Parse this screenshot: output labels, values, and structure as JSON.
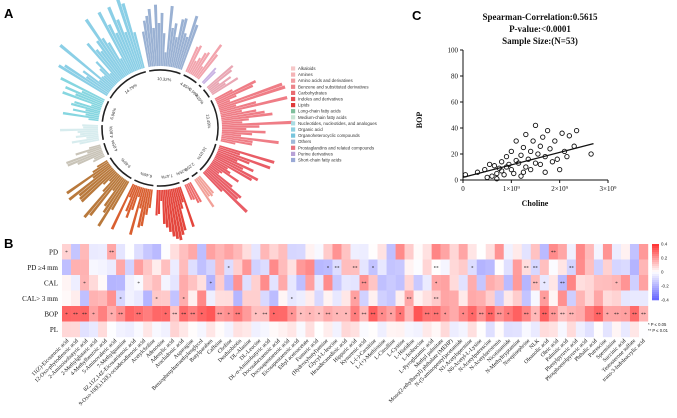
{
  "panels": {
    "a": "A",
    "b": "B",
    "c": "C"
  },
  "circular": {
    "segments": [
      {
        "pct": "4.85%",
        "color": "#f2a3ac"
      },
      {
        "pct": "0.99%",
        "color": "#c9b2e3"
      },
      {
        "pct": "3.10%",
        "color": "#e9a6b3"
      },
      {
        "pct": "13.49%",
        "color": "#ef7d86"
      },
      {
        "pct": "10.01%",
        "color": "#e95d66"
      },
      {
        "pct": "2.25%",
        "color": "#f2a098"
      },
      {
        "pct": "2.25%",
        "color": "#ee6b6b"
      },
      {
        "pct": "7.47%",
        "color": "#e4463d"
      },
      {
        "pct": "6.46%",
        "color": "#d95f30"
      },
      {
        "pct": "9.69%",
        "color": "#b9793c"
      },
      {
        "pct": "4.05%",
        "color": "#c9c4b8"
      },
      {
        "pct": "4.80%",
        "color": "#d7ecee"
      },
      {
        "pct": "6.96%",
        "color": "#86d6e0"
      },
      {
        "pct": "14.79%",
        "color": "#8bcfe6"
      },
      {
        "pct": "10.32%",
        "color": "#9ab1d3"
      }
    ],
    "legend": [
      {
        "label": "Alkaloids",
        "color": "#f6c7c8"
      },
      {
        "label": "Amines",
        "color": "#f4b3b6"
      },
      {
        "label": "Amino acids and derivatives",
        "color": "#f09da2"
      },
      {
        "label": "Benzene and substituted derivatives",
        "color": "#ec848a"
      },
      {
        "label": "Carbohydrates",
        "color": "#e96b70"
      },
      {
        "label": "Indoles and derivatives",
        "color": "#e45054"
      },
      {
        "label": "Lipids",
        "color": "#df3a3a"
      },
      {
        "label": "Long-chain fatty acids",
        "color": "#7fbf9c"
      },
      {
        "label": "Medium-chain fatty acids",
        "color": "#c7e4d3"
      },
      {
        "label": "Nucleotides, nucleotides, and analogues",
        "color": "#a9dce3"
      },
      {
        "label": "Organic acid",
        "color": "#8fcfe0"
      },
      {
        "label": "Organoheterocyclic compounds",
        "color": "#78c4dc"
      },
      {
        "label": "Others",
        "color": "#9fb8d8"
      },
      {
        "label": "Prostaglandins and related compounds",
        "color": "#e9727e"
      },
      {
        "label": "Purine derivatives",
        "color": "#b7a1d6"
      },
      {
        "label": "Short-chain fatty acids",
        "color": "#9aa9d6"
      }
    ]
  },
  "chart_data": [
    {
      "type": "scatter",
      "title": "Spearman-Correlation:0.5615",
      "subtitle1": "P-value:<0.0001",
      "subtitle2": "Sample Size:(N=53)",
      "xlabel": "Choline",
      "ylabel": "BOP",
      "xlim": [
        0,
        3000000000
      ],
      "ylim": [
        0,
        100
      ],
      "xticks": [
        "0",
        "1×10⁹",
        "2×10⁹",
        "3×10⁹"
      ],
      "yticks": [
        "0",
        "20",
        "40",
        "60",
        "80",
        "100"
      ],
      "regression": {
        "x0": 0,
        "y0": 2,
        "x1": 2700000000,
        "y1": 28
      },
      "points": [
        [
          50000000,
          4
        ],
        [
          300000000,
          6
        ],
        [
          450000000,
          8
        ],
        [
          500000000,
          2
        ],
        [
          550000000,
          12
        ],
        [
          600000000,
          3
        ],
        [
          650000000,
          11
        ],
        [
          700000000,
          5
        ],
        [
          700000000,
          1
        ],
        [
          750000000,
          9
        ],
        [
          800000000,
          7
        ],
        [
          800000000,
          14
        ],
        [
          850000000,
          4
        ],
        [
          900000000,
          10
        ],
        [
          900000000,
          18
        ],
        [
          950000000,
          12
        ],
        [
          1000000000,
          8
        ],
        [
          1000000000,
          22
        ],
        [
          1050000000,
          5
        ],
        [
          1100000000,
          15
        ],
        [
          1100000000,
          30
        ],
        [
          1150000000,
          13
        ],
        [
          1200000000,
          19
        ],
        [
          1200000000,
          3
        ],
        [
          1250000000,
          25
        ],
        [
          1300000000,
          10
        ],
        [
          1300000000,
          35
        ],
        [
          1350000000,
          16
        ],
        [
          1400000000,
          22
        ],
        [
          1400000000,
          8
        ],
        [
          1450000000,
          30
        ],
        [
          1500000000,
          13
        ],
        [
          1500000000,
          42
        ],
        [
          1550000000,
          20
        ],
        [
          1600000000,
          26
        ],
        [
          1600000000,
          12
        ],
        [
          1650000000,
          33
        ],
        [
          1700000000,
          18
        ],
        [
          1700000000,
          6
        ],
        [
          1750000000,
          38
        ],
        [
          1800000000,
          24
        ],
        [
          1850000000,
          14
        ],
        [
          1900000000,
          30
        ],
        [
          1950000000,
          16
        ],
        [
          2000000000,
          8
        ],
        [
          2050000000,
          36
        ],
        [
          2100000000,
          22
        ],
        [
          2150000000,
          18
        ],
        [
          2200000000,
          34
        ],
        [
          2300000000,
          26
        ],
        [
          2350000000,
          38
        ],
        [
          2650000000,
          20
        ],
        [
          1250000000,
          6
        ]
      ]
    },
    {
      "type": "heatmap",
      "rows": [
        "PD",
        "PD ≥4 mm",
        "CAL",
        "CAL> 3 mm",
        "BOP",
        "PL"
      ],
      "columns": [
        "11(Z)-Eicosenoic acid",
        "12-Oxo-phytodienoic acid",
        "2-Aminoisobutyric acid",
        "2-Methylglutaric acid",
        "4-Methylbenzoic acid",
        "5-Aminovaleric acid",
        "7-Methylguanine",
        "8Z,11Z,14Z-Eicosatrienoic acid",
        "9-Oxo-10(E),12(E)-octadecadienoic acid",
        "Acetylcholine",
        "Adenosine",
        "Adenylic acid",
        "Arachidonic acid",
        "Asparagine",
        "Benzenebutanoic acid",
        "Benzophenyltetraethylenglycol",
        "Butylparaben",
        "Caffeine",
        "Choline",
        "Desthiobiotin",
        "DL-Alanine",
        "DL-Leucine",
        "DL-α-Aminobutyric acid",
        "Docosahexaenoic acid",
        "Docosapentaenoic acid",
        "Eicosapentaenoic acid",
        "Ethyl acetoacetate",
        "Fumaric acid",
        "Gluconic acid",
        "(Hydroxybutyl)amine",
        "Glycerophosphocholine",
        "Glycyl-L-leucine",
        "Hexadecanedioic acid",
        "Hippuric acid",
        "Kynurenic acid",
        "L-(-)-Carnitine",
        "L-(+)-Methionine",
        "L-Citrulline",
        "L-Cystine",
        "L-Histidine",
        "L-Isoleucine",
        "L-Pyroglutamic acid",
        "Methyl palmitate",
        "Mono(2-ethylhexyl) phthalate (MEHP)",
        "N-(5-aminopentyl)acetamide",
        "N1-Acetylspermine",
        "N6-Acetyl-L-Lysine",
        "N-Acetylputrescine",
        "N-Acetylserotonin",
        "Nicotinamide",
        "N-Methyltryptamine",
        "Norepinephrine",
        "Nicotinic acid",
        "NLK",
        "Oleanolic acid",
        "Oleic acid",
        "Palmitic acid",
        "Phenylpyruvic acid",
        "Phosphoenolpyruvic acid",
        "Phthalic acid",
        "Putrescine",
        "Sperminine",
        "Succinic acid",
        "Testosterone sulfate",
        "trans-3-Indoleacrylic acid"
      ],
      "visible_column_labels": [
        "11(Z)-Eicosenoic acid",
        "12-Oxo-phytodienoic acid",
        "2-Aminoisobutyric acid",
        "2-Methylglutaric acid",
        "4-Methylbenzoic acid",
        "5-Aminovaleric acid",
        "7-Methylguanine",
        "8Z,11Z,14Z-Eicosatrienoic acid",
        "9-Oxo-10(E),12(E)-octadecadienoic acid",
        "Acetylcholine",
        "Adenosine",
        "Adenylic acid",
        "Arachidonic acid",
        "Asparagine",
        "Benzophenyltetraethylenglycol",
        "Butylparaben",
        "Caffeine",
        "Choline",
        "Desthiobiotin",
        "DL-Alanine",
        "DL-Leucine",
        "DL-α-Aminobutyric acid",
        "Docosahexaenoic acid",
        "Docosapentaenoic acid",
        "Eicosapentaenoic acid",
        "Ethyl acetoacetate",
        "Fumaric acid",
        "(Hydroxybutyl)amine",
        "Glycyl-L-leucine",
        "Hexadecanedioic acid",
        "Hippuric acid",
        "Kynurenic acid",
        "L-(-)-Carnitine",
        "L-(+)-Methionine",
        "L-Citrulline",
        "L-Cystine",
        "L-Histidine",
        "L-Isoleucine",
        "L-Pyroglutamic acid",
        "Methyl palmitate",
        "Mono(2-ethylhexyl) phthalate (MEHP)",
        "N-(5-aminopentyl)acetamide",
        "N1-Acetylspermine",
        "N6-Acetyl-L-Lysine",
        "N-Acetylputrescine",
        "N-Acetylserotonin",
        "Nicotinamide",
        "N-Methyltryptamine",
        "Norepinephrine",
        "NLK",
        "Oleanolic acid",
        "Oleic acid",
        "Palmitic acid",
        "Phenylpyruvic acid",
        "Phosphoenolpyruvic acid",
        "Phthalic acid",
        "Putrescine",
        "Sperminine",
        "Succinic acid",
        "Testosterone sulfate",
        "trans-3-Indoleacrylic acid"
      ],
      "scale_ticks": [
        "0.4",
        "0.2",
        "0",
        "-0.2",
        "-0.4"
      ],
      "legend_notes": [
        "* P ≤ 0.05",
        "** P ≤ 0.01"
      ]
    }
  ]
}
